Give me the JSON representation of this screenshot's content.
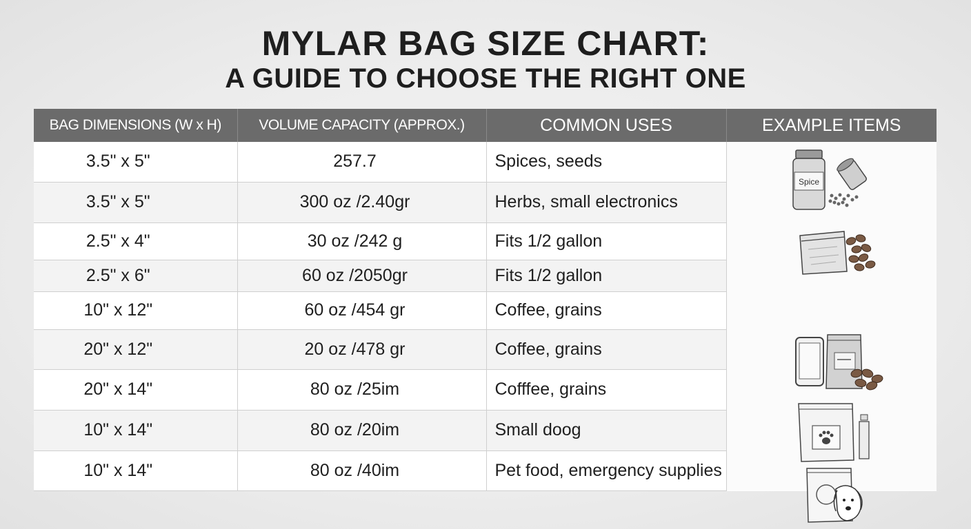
{
  "title": {
    "line1": "MYLAR BAG SIZE CHART:",
    "line2": "A GUIDE TO CHOOSE THE RIGHT ONE"
  },
  "table": {
    "headers": {
      "dimensions": "BAG DIMENSIONS (W x H)",
      "volume": "VOLUME CAPACITY (APPROX.)",
      "uses": "COMMON USES",
      "examples": "EXAMPLE ITEMS"
    },
    "rows": [
      {
        "dimensions": "3.5\" x 5\"",
        "volume": "257.7",
        "uses": "Spices, seeds"
      },
      {
        "dimensions": "3.5\" x 5\"",
        "volume": "300 oz /2.40gr",
        "uses": "Herbs, small electronics"
      },
      {
        "dimensions": "2.5\" x 4\"",
        "volume": "30 oz /242 g",
        "uses": "Fits 1/2 gallon"
      },
      {
        "dimensions": "2.5\" x 6\"",
        "volume": "60 oz /2050gr",
        "uses": "Fits 1/2 gallon"
      },
      {
        "dimensions": "10\" x 12\"",
        "volume": "60 oz /454 gr",
        "uses": "Coffee, grains"
      },
      {
        "dimensions": "20\" x 12\"",
        "volume": "20 oz /478 gr",
        "uses": "Coffee, grains"
      },
      {
        "dimensions": "20\" x 14\"",
        "volume": "80 oz /25im",
        "uses": "Cofffee, grains"
      },
      {
        "dimensions": "10\" x 14\"",
        "volume": "80 oz /20im",
        "uses": "Small doog"
      },
      {
        "dimensions": "10\" x 14\"",
        "volume": "80 oz /40im",
        "uses": "Pet food, emergency supplies"
      }
    ],
    "example_items": {
      "spice_jar_label": "Spice",
      "icons": [
        "spice-jar-icon",
        "coffee-bag-icon",
        "phone-and-bag-icon",
        "pet-food-bag-icon",
        "dog-bag-icon"
      ]
    }
  },
  "colors": {
    "header_bg": "#6b6b6b",
    "header_text": "#ffffff",
    "row_alt": "#f3f3f3",
    "grid": "#cfcfcf"
  }
}
